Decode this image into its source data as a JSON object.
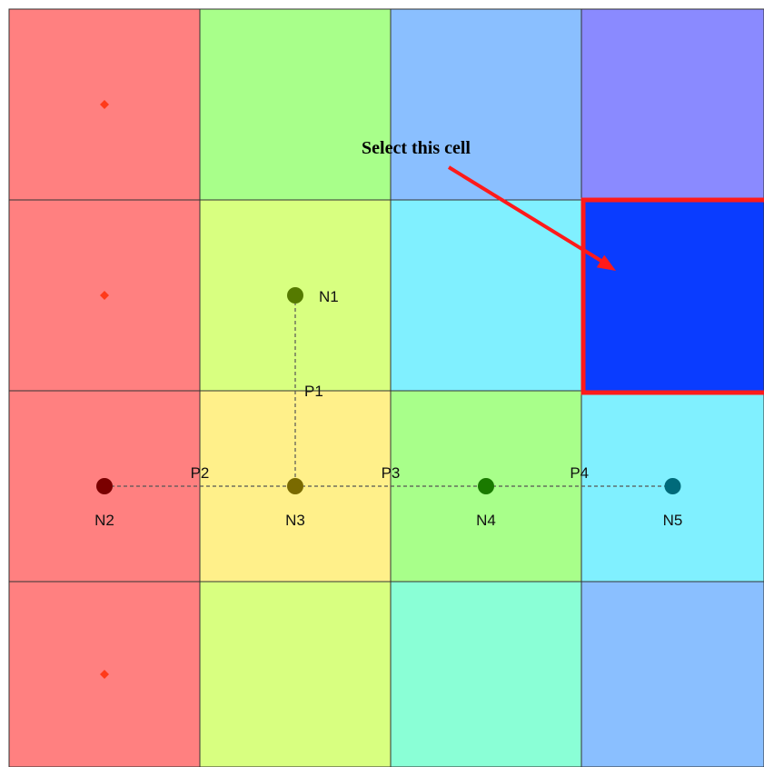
{
  "grid": {
    "rows": 4,
    "cols": 4,
    "cell_colors": [
      [
        "#ff8080",
        "#a8ff8a",
        "#8abfff",
        "#8a8aff"
      ],
      [
        "#ff8080",
        "#d8ff80",
        "#80f0ff",
        "#0a3cff"
      ],
      [
        "#ff8080",
        "#fff08a",
        "#a8ff8a",
        "#80f0ff"
      ],
      [
        "#ff8080",
        "#d8ff80",
        "#8affd6",
        "#8abfff"
      ]
    ],
    "marker_color": "#ff3a1a",
    "selected_cell": {
      "row": 1,
      "col": 3,
      "border_color": "#ff1a1a"
    }
  },
  "nodes": [
    {
      "label": "N1",
      "color": "#557a00"
    },
    {
      "label": "N2",
      "color": "#7a0000"
    },
    {
      "label": "N3",
      "color": "#7a6a00"
    },
    {
      "label": "N4",
      "color": "#1a7a00"
    },
    {
      "label": "N5",
      "color": "#006a7a"
    }
  ],
  "paths": [
    {
      "label": "P1",
      "from": "N1",
      "to": "N3"
    },
    {
      "label": "P2",
      "from": "N2",
      "to": "N3"
    },
    {
      "label": "P3",
      "from": "N3",
      "to": "N4"
    },
    {
      "label": "P4",
      "from": "N4",
      "to": "N5"
    }
  ],
  "callout": {
    "text": "Select this cell",
    "arrow_color": "#ff1a1a"
  }
}
